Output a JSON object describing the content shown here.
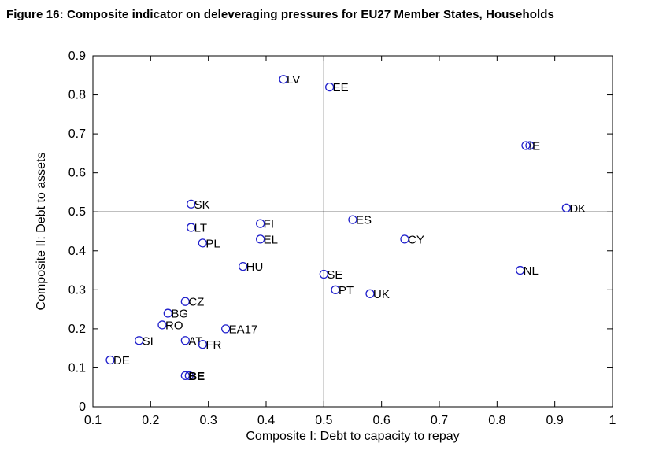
{
  "figure": {
    "title": "Figure 16: Composite indicator on deleveraging pressures for EU27 Member States, Households"
  },
  "chart_data": {
    "type": "scatter",
    "title": "Figure 16: Composite indicator on deleveraging pressures for EU27 Member States, Households",
    "xlabel": "Composite I: Debt to capacity to repay",
    "ylabel": "Composite II: Debt to assets",
    "xlim": [
      0.1,
      1
    ],
    "ylim": [
      0,
      0.9
    ],
    "xticks": [
      "0.1",
      "0.2",
      "0.3",
      "0.4",
      "0.5",
      "0.6",
      "0.7",
      "0.8",
      "0.9",
      "1"
    ],
    "yticks": [
      "0",
      "0.1",
      "0.2",
      "0.3",
      "0.4",
      "0.5",
      "0.6",
      "0.7",
      "0.8",
      "0.9"
    ],
    "grid": false,
    "legend": "none",
    "reference_lines": {
      "vertical_x": 0.5,
      "horizontal_y": 0.5
    },
    "marker": {
      "shape": "open-circle",
      "color": "#2020cc",
      "radius": 5
    },
    "points": [
      {
        "label": "LV",
        "x": 0.43,
        "y": 0.84
      },
      {
        "label": "EE",
        "x": 0.51,
        "y": 0.82
      },
      {
        "label": "IE",
        "x": 0.85,
        "y": 0.67,
        "double": true
      },
      {
        "label": "DK",
        "x": 0.92,
        "y": 0.51
      },
      {
        "label": "SK",
        "x": 0.27,
        "y": 0.52
      },
      {
        "label": "ES",
        "x": 0.55,
        "y": 0.48
      },
      {
        "label": "FI",
        "x": 0.39,
        "y": 0.47
      },
      {
        "label": "LT",
        "x": 0.27,
        "y": 0.46
      },
      {
        "label": "EL",
        "x": 0.39,
        "y": 0.43
      },
      {
        "label": "PL",
        "x": 0.29,
        "y": 0.42
      },
      {
        "label": "CY",
        "x": 0.64,
        "y": 0.43
      },
      {
        "label": "HU",
        "x": 0.36,
        "y": 0.36
      },
      {
        "label": "NL",
        "x": 0.84,
        "y": 0.35
      },
      {
        "label": "SE",
        "x": 0.5,
        "y": 0.34
      },
      {
        "label": "PT",
        "x": 0.52,
        "y": 0.3
      },
      {
        "label": "UK",
        "x": 0.58,
        "y": 0.29
      },
      {
        "label": "CZ",
        "x": 0.26,
        "y": 0.27
      },
      {
        "label": "BG",
        "x": 0.23,
        "y": 0.24
      },
      {
        "label": "RO",
        "x": 0.22,
        "y": 0.21
      },
      {
        "label": "EA17",
        "x": 0.33,
        "y": 0.2
      },
      {
        "label": "SI",
        "x": 0.18,
        "y": 0.17
      },
      {
        "label": "AT",
        "x": 0.26,
        "y": 0.17
      },
      {
        "label": "FR",
        "x": 0.29,
        "y": 0.16
      },
      {
        "label": "DE",
        "x": 0.13,
        "y": 0.12
      },
      {
        "label": "BE",
        "x": 0.26,
        "y": 0.08,
        "double": true,
        "bold": true
      }
    ]
  }
}
